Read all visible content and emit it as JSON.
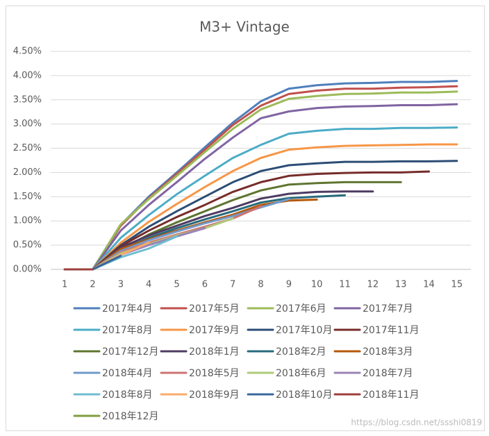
{
  "chart_data": {
    "type": "line",
    "title": "M3+ Vintage",
    "categories": [
      "1",
      "2",
      "3",
      "4",
      "5",
      "6",
      "7",
      "8",
      "9",
      "10",
      "11",
      "12",
      "13",
      "14",
      "15"
    ],
    "ylim": [
      0,
      4.5
    ],
    "yticks": [
      {
        "value": 0,
        "label": "0.00%"
      },
      {
        "value": 0.5,
        "label": "0.50%"
      },
      {
        "value": 1,
        "label": "1.00%"
      },
      {
        "value": 1.5,
        "label": "1.50%"
      },
      {
        "value": 2,
        "label": "2.00%"
      },
      {
        "value": 2.5,
        "label": "2.50%"
      },
      {
        "value": 3,
        "label": "3.00%"
      },
      {
        "value": 3.5,
        "label": "3.50%"
      },
      {
        "value": 4,
        "label": "4.00%"
      },
      {
        "value": 4.5,
        "label": "4.50%"
      }
    ],
    "grid": true,
    "legend": "bottom",
    "annotation": "https://blog.csdn.net/ssshi0819",
    "series": [
      {
        "name": "2017年4月",
        "color": "#4f7fbc",
        "values": [
          0,
          0,
          0.92,
          1.5,
          2.0,
          2.52,
          3.03,
          3.47,
          3.73,
          3.8,
          3.84,
          3.85,
          3.87,
          3.87,
          3.89
        ]
      },
      {
        "name": "2017年5月",
        "color": "#c0504d",
        "values": [
          0,
          0,
          0.9,
          1.47,
          1.97,
          2.47,
          2.98,
          3.38,
          3.62,
          3.69,
          3.73,
          3.73,
          3.75,
          3.76,
          3.78
        ]
      },
      {
        "name": "2017年6月",
        "color": "#9bbb59",
        "values": [
          0,
          0,
          0.93,
          1.45,
          1.93,
          2.42,
          2.9,
          3.3,
          3.52,
          3.58,
          3.62,
          3.63,
          3.65,
          3.65,
          3.67
        ]
      },
      {
        "name": "2017年7月",
        "color": "#8064a2",
        "values": [
          0,
          0,
          0.8,
          1.33,
          1.8,
          2.28,
          2.72,
          3.12,
          3.26,
          3.33,
          3.36,
          3.37,
          3.39,
          3.39,
          3.41
        ]
      },
      {
        "name": "2017年8月",
        "color": "#4bacc6",
        "values": [
          0,
          0,
          0.65,
          1.12,
          1.55,
          1.93,
          2.3,
          2.57,
          2.8,
          2.86,
          2.9,
          2.9,
          2.92,
          2.92,
          2.93
        ]
      },
      {
        "name": "2017年9月",
        "color": "#f79646",
        "values": [
          0,
          0,
          0.55,
          0.98,
          1.35,
          1.7,
          2.03,
          2.3,
          2.47,
          2.52,
          2.55,
          2.56,
          2.57,
          2.58,
          2.58
        ]
      },
      {
        "name": "2017年10月",
        "color": "#2c4d75",
        "values": [
          0,
          0,
          0.5,
          0.88,
          1.2,
          1.5,
          1.8,
          2.03,
          2.15,
          2.19,
          2.22,
          2.22,
          2.23,
          2.23,
          2.24
        ]
      },
      {
        "name": "2017年11月",
        "color": "#772c2a",
        "values": [
          0,
          0,
          0.48,
          0.8,
          1.08,
          1.33,
          1.6,
          1.8,
          1.93,
          1.97,
          1.99,
          2.0,
          2.0,
          2.02,
          null
        ]
      },
      {
        "name": "2017年12月",
        "color": "#5f7530",
        "values": [
          0,
          0,
          0.42,
          0.72,
          0.97,
          1.2,
          1.43,
          1.63,
          1.75,
          1.78,
          1.8,
          1.8,
          1.8,
          null,
          null
        ]
      },
      {
        "name": "2018年1月",
        "color": "#4d3b62",
        "values": [
          0,
          0,
          0.45,
          0.7,
          0.9,
          1.1,
          1.27,
          1.46,
          1.56,
          1.6,
          1.61,
          1.61,
          null,
          null,
          null
        ]
      },
      {
        "name": "2018年2月",
        "color": "#276a7c",
        "values": [
          0,
          0,
          0.4,
          0.65,
          0.85,
          1.03,
          1.2,
          1.38,
          1.47,
          1.5,
          1.53,
          null,
          null,
          null,
          null
        ]
      },
      {
        "name": "2018年3月",
        "color": "#b65708",
        "values": [
          0,
          0,
          0.42,
          0.62,
          0.8,
          0.97,
          1.13,
          1.33,
          1.42,
          1.44,
          null,
          null,
          null,
          null,
          null
        ]
      },
      {
        "name": "2018年4月",
        "color": "#729aca",
        "values": [
          0,
          0,
          0.38,
          0.6,
          0.78,
          0.95,
          1.1,
          1.28,
          1.45,
          null,
          null,
          null,
          null,
          null,
          null
        ]
      },
      {
        "name": "2018年5月",
        "color": "#cd7371",
        "values": [
          0,
          0,
          0.35,
          0.55,
          0.72,
          0.88,
          1.05,
          1.3,
          null,
          null,
          null,
          null,
          null,
          null,
          null
        ]
      },
      {
        "name": "2018年6月",
        "color": "#afc97a",
        "values": [
          0,
          0,
          0.33,
          0.52,
          0.7,
          0.85,
          1.05,
          null,
          null,
          null,
          null,
          null,
          null,
          null,
          null
        ]
      },
      {
        "name": "2018年7月",
        "color": "#9983b5",
        "values": [
          0,
          0,
          0.3,
          0.5,
          0.68,
          0.85,
          null,
          null,
          null,
          null,
          null,
          null,
          null,
          null,
          null
        ]
      },
      {
        "name": "2018年8月",
        "color": "#6fbdd1",
        "values": [
          0,
          0,
          0.25,
          0.43,
          0.68,
          null,
          null,
          null,
          null,
          null,
          null,
          null,
          null,
          null,
          null
        ]
      },
      {
        "name": "2018年9月",
        "color": "#f9ab6b",
        "values": [
          0,
          0,
          0.3,
          0.55,
          null,
          null,
          null,
          null,
          null,
          null,
          null,
          null,
          null,
          null,
          null
        ]
      },
      {
        "name": "2018年10月",
        "color": "#3a679c",
        "values": [
          0,
          0,
          0.28,
          null,
          null,
          null,
          null,
          null,
          null,
          null,
          null,
          null,
          null,
          null,
          null
        ]
      },
      {
        "name": "2018年11月",
        "color": "#9d3f3d",
        "values": [
          0,
          0,
          null,
          null,
          null,
          null,
          null,
          null,
          null,
          null,
          null,
          null,
          null,
          null,
          null
        ]
      },
      {
        "name": "2018年12月",
        "color": "#7f9e3f",
        "values": [
          0,
          null,
          null,
          null,
          null,
          null,
          null,
          null,
          null,
          null,
          null,
          null,
          null,
          null,
          null
        ]
      }
    ]
  }
}
